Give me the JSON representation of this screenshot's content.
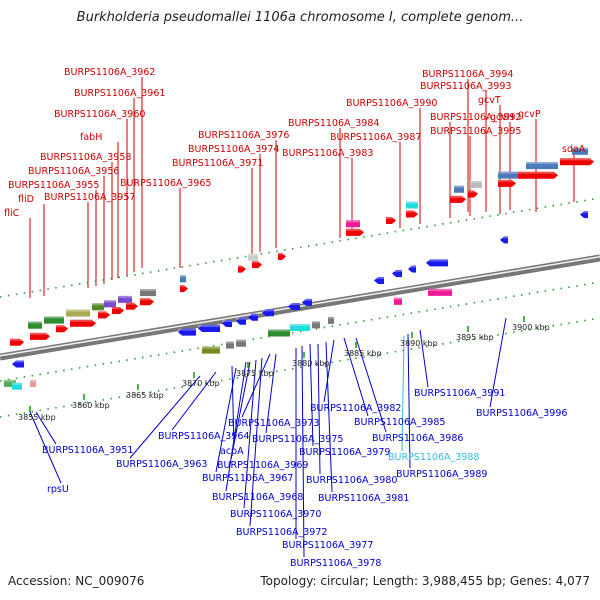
{
  "title": "Burkholderia pseudomallei 1106a chromosome I, complete genom...",
  "footer": {
    "accession": "Accession: NC_009076",
    "topology": "Topology: circular; Length: 3,988,455 bp; Genes: 4,077"
  },
  "colors": {
    "top_label": "#cc0000",
    "bottom_label": "#0000cc",
    "highlight_label": "#33bbdd",
    "forward_gene": "#ee0000",
    "reverse_gene": "#1a1aee",
    "backbone": "#777777",
    "tick": "#119911"
  },
  "ruler_ticks": [
    "3855 kbp",
    "3860 kbp",
    "3865 kbp",
    "3870 kbp",
    "3875 kbp",
    "3880 kbp",
    "3885 kbp",
    "3890 kbp",
    "3895 kbp",
    "3900 kbp"
  ],
  "top_labels": [
    "BURPS1106A_3962",
    "BURPS1106A_3961",
    "BURPS1106A_3960",
    "fabH",
    "BURPS1106A_3958",
    "BURPS1106A_3956",
    "BURPS1106A_3955",
    "fliD",
    "BURPS1106A_3957",
    "fliC",
    "BURPS1106A_3965",
    "BURPS1106A_3971",
    "BURPS1106A_3974",
    "BURPS1106A_3976",
    "BURPS1106A_3983",
    "BURPS1106A_3984",
    "BURPS1106A_3987",
    "BURPS1106A_3990",
    "BURPS1106A_3994",
    "BURPS1106A_3993",
    "gcvT",
    "BURPS1106A_3992",
    "gcvH",
    "BURPS1106A_3995",
    "gcvP",
    "sdaA"
  ],
  "bottom_labels": [
    "BURPS1106A_3951",
    "rpsU",
    "BURPS1106A_3963",
    "BURPS1106A_3964",
    "acpA",
    "BURPS1106A_3967",
    "BURPS1106A_3968",
    "BURPS1106A_3969",
    "BURPS1106A_3970",
    "BURPS1106A_3972",
    "BURPS1106A_3973",
    "BURPS1106A_3975",
    "BURPS1106A_3977",
    "BURPS1106A_3978",
    "BURPS1106A_3979",
    "BURPS1106A_3980",
    "BURPS1106A_3981",
    "BURPS1106A_3982",
    "BURPS1106A_3985",
    "BURPS1106A_3986",
    "BURPS1106A_3988",
    "BURPS1106A_3989",
    "BURPS1106A_3991",
    "BURPS1106A_3996"
  ]
}
